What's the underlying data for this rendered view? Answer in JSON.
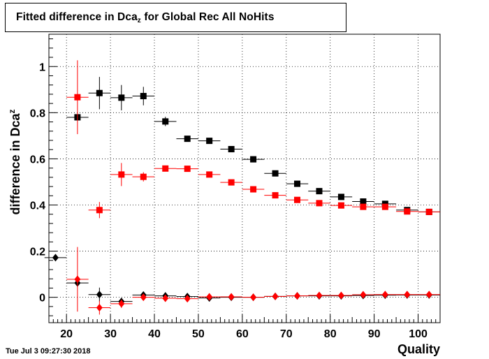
{
  "title": {
    "main": "Fitted difference in Dca",
    "sub": "z",
    "rest": " for Global Rec All NoHits"
  },
  "footer": {
    "date": "Tue Jul  3 09:27:30 2018"
  },
  "chart_data": {
    "type": "scatter",
    "title": "Fitted difference in Dca_z for Global Rec All NoHits",
    "xlabel": "Quality",
    "ylabel": "difference in Dca",
    "ylabel_sub": "z",
    "xlim": [
      16,
      105
    ],
    "ylim": [
      -0.11,
      1.14
    ],
    "xticks": [
      20,
      30,
      40,
      50,
      60,
      70,
      80,
      90,
      100
    ],
    "yticks": [
      0,
      0.2,
      0.4,
      0.6,
      0.8,
      1
    ],
    "ytick_labels": [
      "0",
      "0.2",
      "0.4",
      "0.6",
      "0.8",
      "1"
    ],
    "grid": true,
    "bin_half_width": 2.5,
    "series": [
      {
        "marker": "square",
        "color": "#000000",
        "points": [
          {
            "x": 22.5,
            "y": 0.78,
            "err": 0.0
          },
          {
            "x": 27.5,
            "y": 0.885,
            "err": 0.07
          },
          {
            "x": 32.5,
            "y": 0.865,
            "err": 0.055
          },
          {
            "x": 37.5,
            "y": 0.872,
            "err": 0.04
          },
          {
            "x": 42.5,
            "y": 0.762,
            "err": 0.02
          },
          {
            "x": 47.5,
            "y": 0.687,
            "err": 0.01
          },
          {
            "x": 52.5,
            "y": 0.678,
            "err": 0.008
          },
          {
            "x": 57.5,
            "y": 0.642,
            "err": 0.006
          },
          {
            "x": 62.5,
            "y": 0.598,
            "err": 0.005
          },
          {
            "x": 67.5,
            "y": 0.537,
            "err": 0.005
          },
          {
            "x": 72.5,
            "y": 0.492,
            "err": 0.005
          },
          {
            "x": 77.5,
            "y": 0.46,
            "err": 0.005
          },
          {
            "x": 82.5,
            "y": 0.435,
            "err": 0.005
          },
          {
            "x": 87.5,
            "y": 0.415,
            "err": 0.005
          },
          {
            "x": 92.5,
            "y": 0.405,
            "err": 0.004
          },
          {
            "x": 97.5,
            "y": 0.378,
            "err": 0.004
          },
          {
            "x": 102.5,
            "y": 0.37,
            "err": 0.004
          }
        ]
      },
      {
        "marker": "square",
        "color": "#ff0000",
        "points": [
          {
            "x": 22.5,
            "y": 0.867,
            "err": 0.16
          },
          {
            "x": 27.5,
            "y": 0.378,
            "err": 0.035
          },
          {
            "x": 32.5,
            "y": 0.532,
            "err": 0.05
          },
          {
            "x": 37.5,
            "y": 0.522,
            "err": 0.02
          },
          {
            "x": 42.5,
            "y": 0.558,
            "err": 0.008
          },
          {
            "x": 47.5,
            "y": 0.557,
            "err": 0.006
          },
          {
            "x": 52.5,
            "y": 0.532,
            "err": 0.005
          },
          {
            "x": 57.5,
            "y": 0.498,
            "err": 0.005
          },
          {
            "x": 62.5,
            "y": 0.468,
            "err": 0.004
          },
          {
            "x": 67.5,
            "y": 0.442,
            "err": 0.004
          },
          {
            "x": 72.5,
            "y": 0.422,
            "err": 0.004
          },
          {
            "x": 77.5,
            "y": 0.408,
            "err": 0.004
          },
          {
            "x": 82.5,
            "y": 0.398,
            "err": 0.004
          },
          {
            "x": 87.5,
            "y": 0.392,
            "err": 0.004
          },
          {
            "x": 92.5,
            "y": 0.392,
            "err": 0.004
          },
          {
            "x": 97.5,
            "y": 0.372,
            "err": 0.004
          },
          {
            "x": 102.5,
            "y": 0.37,
            "err": 0.004
          }
        ]
      },
      {
        "marker": "diamond",
        "color": "#000000",
        "points": [
          {
            "x": 17.5,
            "y": 0.172,
            "err": 0.0
          },
          {
            "x": 22.5,
            "y": 0.062,
            "err": 0.0
          },
          {
            "x": 27.5,
            "y": 0.012,
            "err": 0.03
          },
          {
            "x": 32.5,
            "y": -0.018,
            "err": 0.015
          },
          {
            "x": 37.5,
            "y": 0.01,
            "err": 0.01
          },
          {
            "x": 42.5,
            "y": 0.006,
            "err": 0.005
          },
          {
            "x": 47.5,
            "y": 0.003,
            "err": 0.004
          },
          {
            "x": 52.5,
            "y": -0.003,
            "err": 0.003
          },
          {
            "x": 57.5,
            "y": 0.0,
            "err": 0.003
          },
          {
            "x": 62.5,
            "y": 0.0,
            "err": 0.003
          },
          {
            "x": 67.5,
            "y": 0.004,
            "err": 0.003
          },
          {
            "x": 72.5,
            "y": 0.006,
            "err": 0.003
          },
          {
            "x": 77.5,
            "y": 0.006,
            "err": 0.003
          },
          {
            "x": 82.5,
            "y": 0.006,
            "err": 0.003
          },
          {
            "x": 87.5,
            "y": 0.008,
            "err": 0.003
          },
          {
            "x": 92.5,
            "y": 0.009,
            "err": 0.003
          },
          {
            "x": 97.5,
            "y": 0.01,
            "err": 0.003
          },
          {
            "x": 102.5,
            "y": 0.01,
            "err": 0.003
          }
        ]
      },
      {
        "marker": "diamond",
        "color": "#ff0000",
        "points": [
          {
            "x": 22.5,
            "y": 0.078,
            "err": 0.14
          },
          {
            "x": 27.5,
            "y": -0.045,
            "err": 0.03
          },
          {
            "x": 32.5,
            "y": -0.028,
            "err": 0.018
          },
          {
            "x": 37.5,
            "y": 0.0,
            "err": 0.01
          },
          {
            "x": 42.5,
            "y": -0.004,
            "err": 0.005
          },
          {
            "x": 47.5,
            "y": -0.006,
            "err": 0.004
          },
          {
            "x": 52.5,
            "y": 0.002,
            "err": 0.003
          },
          {
            "x": 57.5,
            "y": 0.002,
            "err": 0.003
          },
          {
            "x": 62.5,
            "y": 0.0,
            "err": 0.003
          },
          {
            "x": 67.5,
            "y": 0.004,
            "err": 0.003
          },
          {
            "x": 72.5,
            "y": 0.006,
            "err": 0.003
          },
          {
            "x": 77.5,
            "y": 0.008,
            "err": 0.003
          },
          {
            "x": 82.5,
            "y": 0.008,
            "err": 0.003
          },
          {
            "x": 87.5,
            "y": 0.011,
            "err": 0.003
          },
          {
            "x": 92.5,
            "y": 0.012,
            "err": 0.003
          },
          {
            "x": 97.5,
            "y": 0.012,
            "err": 0.003
          },
          {
            "x": 102.5,
            "y": 0.012,
            "err": 0.003
          }
        ]
      }
    ]
  }
}
